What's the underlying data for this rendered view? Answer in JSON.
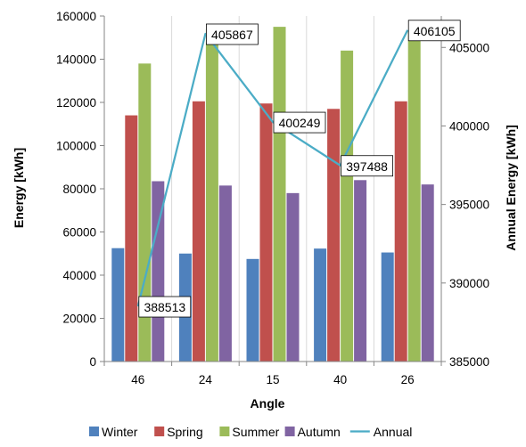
{
  "chart_data": {
    "type": "bar",
    "combo": "bar + line (secondary axis)",
    "categories": [
      "46",
      "24",
      "15",
      "40",
      "26"
    ],
    "series": [
      {
        "name": "Winter",
        "color": "#4f81bd",
        "values": [
          52500,
          50000,
          47500,
          52300,
          50500
        ]
      },
      {
        "name": "Spring",
        "color": "#c0504d",
        "values": [
          114000,
          120500,
          119500,
          117000,
          120500
        ]
      },
      {
        "name": "Summer",
        "color": "#9bbb59",
        "values": [
          138000,
          154000,
          155000,
          144000,
          153000
        ]
      },
      {
        "name": "Autumn",
        "color": "#8064a2",
        "values": [
          83500,
          81500,
          78000,
          84000,
          82000
        ]
      }
    ],
    "line_series": {
      "name": "Annual",
      "color": "#4bacc6",
      "axis": "secondary",
      "values": [
        388513,
        405867,
        400249,
        397488,
        406105
      ],
      "labels": [
        "388513",
        "405867",
        "400249",
        "397488",
        "406105"
      ]
    },
    "xlabel": "Angle",
    "ylabel": "Energy [kWh]",
    "y2label": "Annual Energy [kWh]",
    "ylim": [
      0,
      160000
    ],
    "y2lim": [
      385000,
      407000
    ],
    "yticks": [
      "0",
      "20000",
      "40000",
      "60000",
      "80000",
      "100000",
      "120000",
      "140000",
      "160000"
    ],
    "y2ticks": [
      "385000",
      "390000",
      "395000",
      "400000",
      "405000"
    ],
    "y2tick_values": [
      385000,
      390000,
      395000,
      400000,
      405000
    ],
    "grid": "vertical",
    "legend_position": "bottom"
  }
}
